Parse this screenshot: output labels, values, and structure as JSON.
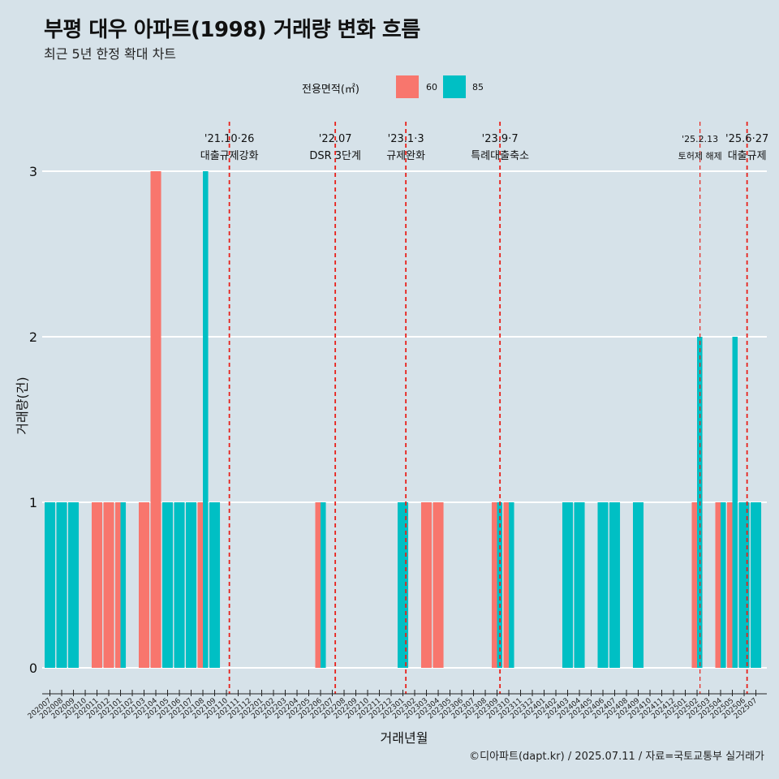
{
  "title": "부평 대우 아파트(1998) 거래량 변화 흐름",
  "subtitle": "최근 5년 한정 확대 차트",
  "caption": "©디아파트(dapt.kr) / 2025.07.11 / 자료=국토교통부 실거래가",
  "legend": {
    "title": "전용면적(㎡)",
    "items": [
      {
        "label": "60",
        "color": "#f8766d"
      },
      {
        "label": "85",
        "color": "#00bfc4"
      }
    ]
  },
  "chart_data": {
    "type": "bar",
    "xlabel": "거래년월",
    "ylabel": "거래량(건)",
    "ylim": [
      0,
      3
    ],
    "yticks": [
      0,
      1,
      2,
      3
    ],
    "grid": true,
    "legend_position": "top",
    "categories": [
      "202007",
      "202008",
      "202009",
      "202010",
      "202011",
      "202012",
      "202101",
      "202102",
      "202103",
      "202104",
      "202105",
      "202106",
      "202107",
      "202108",
      "202109",
      "202110",
      "202111",
      "202112",
      "202201",
      "202202",
      "202203",
      "202204",
      "202205",
      "202206",
      "202207",
      "202208",
      "202209",
      "202210",
      "202211",
      "202212",
      "202301",
      "202302",
      "202303",
      "202304",
      "202305",
      "202306",
      "202307",
      "202308",
      "202309",
      "202310",
      "202311",
      "202312",
      "202401",
      "202402",
      "202403",
      "202404",
      "202405",
      "202406",
      "202407",
      "202408",
      "202409",
      "202410",
      "202411",
      "202412",
      "202501",
      "202502",
      "202503",
      "202504",
      "202505",
      "202506",
      "202507"
    ],
    "series": [
      {
        "name": "60",
        "color": "#f8766d",
        "values": [
          0,
          0,
          0,
          0,
          1,
          1,
          1,
          0,
          1,
          3,
          0,
          0,
          0,
          1,
          0,
          0,
          0,
          0,
          0,
          0,
          0,
          0,
          0,
          1,
          0,
          0,
          0,
          0,
          0,
          0,
          0,
          0,
          1,
          1,
          0,
          0,
          0,
          0,
          1,
          1,
          0,
          0,
          0,
          0,
          0,
          0,
          0,
          0,
          0,
          0,
          0,
          0,
          0,
          0,
          0,
          1,
          0,
          1,
          1,
          0,
          0
        ]
      },
      {
        "name": "85",
        "color": "#00bfc4",
        "values": [
          1,
          1,
          1,
          0,
          0,
          0,
          1,
          0,
          0,
          0,
          1,
          1,
          1,
          3,
          1,
          0,
          0,
          0,
          0,
          0,
          0,
          0,
          0,
          1,
          0,
          0,
          0,
          0,
          0,
          0,
          1,
          0,
          0,
          0,
          0,
          0,
          0,
          0,
          1,
          1,
          0,
          0,
          0,
          0,
          1,
          1,
          0,
          1,
          1,
          0,
          1,
          0,
          0,
          0,
          0,
          2,
          0,
          1,
          2,
          1,
          1
        ]
      }
    ],
    "events": [
      {
        "date": "'21.10·26",
        "label": "대출규제강화",
        "at": 15.7
      },
      {
        "date": "'22.07",
        "label": "DSR 3단계",
        "at": 24.7
      },
      {
        "date": "'23.1·3",
        "label": "규제완화",
        "at": 30.7
      },
      {
        "date": "'23.9·7",
        "label": "특례대출축소",
        "at": 38.7
      },
      {
        "date": "'25.2.13",
        "label": "토허제 해제",
        "at": 55.7,
        "small": true
      },
      {
        "date": "'25.6·27",
        "label": "대출규제",
        "at": 59.7
      }
    ]
  }
}
